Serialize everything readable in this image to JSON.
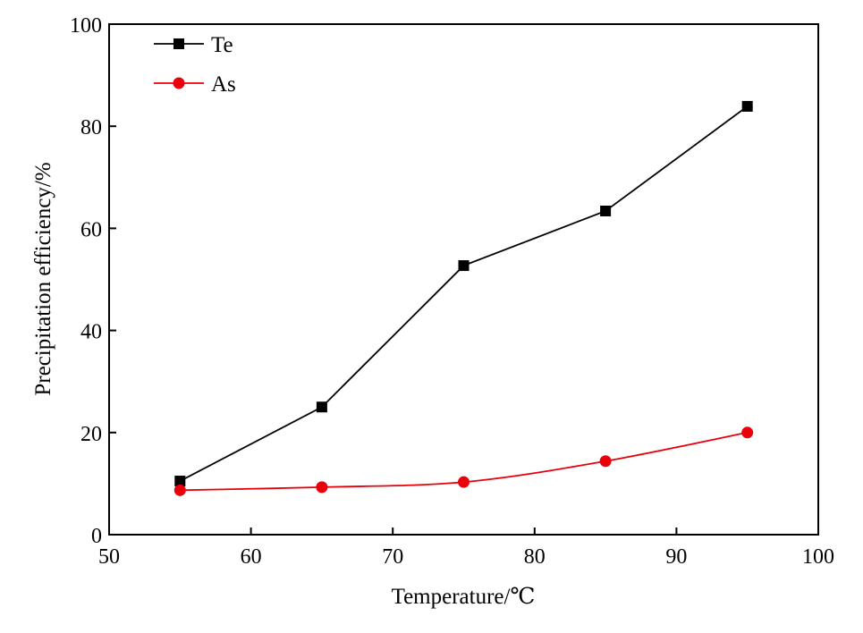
{
  "chart_data": {
    "type": "line",
    "title": "",
    "xlabel": "Temperature/℃",
    "ylabel": "Precipitation efficiency/%",
    "xlim": [
      50,
      100
    ],
    "ylim": [
      0,
      100
    ],
    "xticks": [
      50,
      60,
      70,
      80,
      90,
      100
    ],
    "yticks": [
      0,
      20,
      40,
      60,
      80,
      100
    ],
    "grid": false,
    "legend_position": "top-left",
    "x": [
      55,
      65,
      75,
      85,
      95
    ],
    "series": [
      {
        "name": "Te",
        "color": "#000000",
        "marker": "square",
        "values": [
          10.5,
          25.0,
          52.7,
          63.4,
          83.9
        ]
      },
      {
        "name": "As",
        "color": "#e8000b",
        "marker": "circle",
        "values": [
          8.7,
          9.3,
          10.3,
          14.4,
          20.0
        ]
      }
    ]
  }
}
